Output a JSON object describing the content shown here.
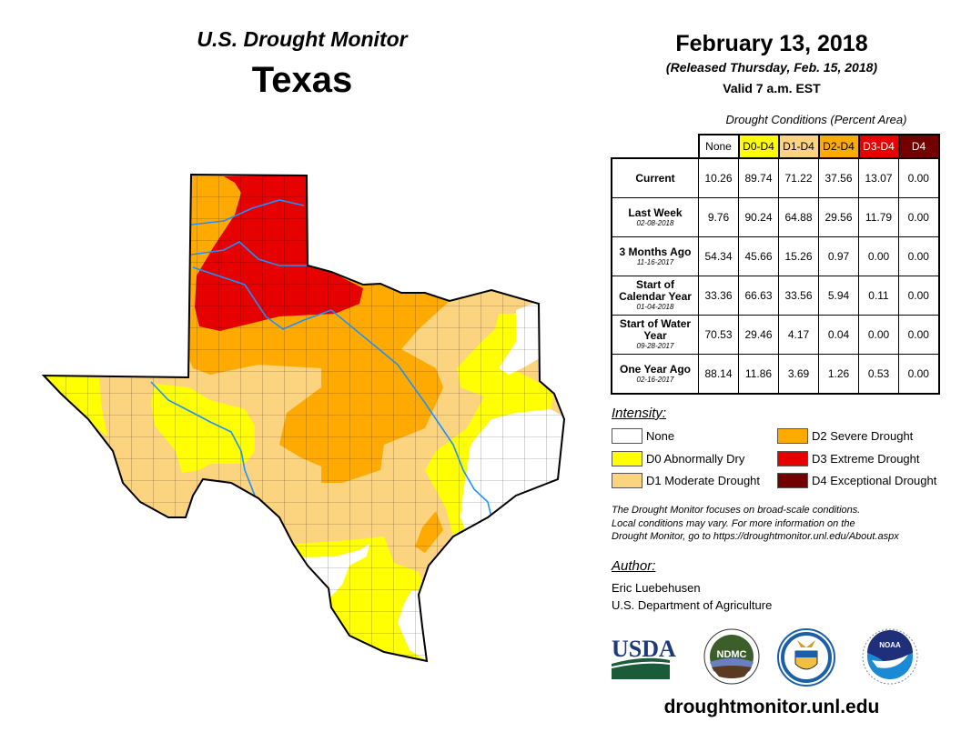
{
  "header": {
    "title": "U.S. Drought Monitor",
    "state": "Texas",
    "date": "February 13, 2018",
    "released": "(Released Thursday, Feb. 15, 2018)",
    "valid": "Valid 7 a.m. EST"
  },
  "table": {
    "caption": "Drought Conditions (Percent Area)",
    "columns": [
      "None",
      "D0-D4",
      "D1-D4",
      "D2-D4",
      "D3-D4",
      "D4"
    ],
    "rows": [
      {
        "label": "Current",
        "date": "",
        "values": [
          "10.26",
          "89.74",
          "71.22",
          "37.56",
          "13.07",
          "0.00"
        ]
      },
      {
        "label": "Last Week",
        "date": "02-08-2018",
        "values": [
          "9.76",
          "90.24",
          "64.88",
          "29.56",
          "11.79",
          "0.00"
        ]
      },
      {
        "label": "3 Months Ago",
        "date": "11-16-2017",
        "values": [
          "54.34",
          "45.66",
          "15.26",
          "0.97",
          "0.00",
          "0.00"
        ]
      },
      {
        "label": "Start of Calendar Year",
        "date": "01-04-2018",
        "values": [
          "33.36",
          "66.63",
          "33.56",
          "5.94",
          "0.11",
          "0.00"
        ]
      },
      {
        "label": "Start of Water Year",
        "date": "09-28-2017",
        "values": [
          "70.53",
          "29.46",
          "4.17",
          "0.04",
          "0.00",
          "0.00"
        ]
      },
      {
        "label": "One Year Ago",
        "date": "02-16-2017",
        "values": [
          "88.14",
          "11.86",
          "3.69",
          "1.26",
          "0.53",
          "0.00"
        ]
      }
    ]
  },
  "colors": {
    "none": "#ffffff",
    "d0": "#ffff00",
    "d1": "#fcd37f",
    "d2": "#ffaa00",
    "d3": "#e60000",
    "d4": "#730000",
    "river": "#1e90ff"
  },
  "legend": {
    "title": "Intensity:",
    "items": [
      "None",
      "D0 Abnormally Dry",
      "D1 Moderate Drought",
      "D2 Severe Drought",
      "D3 Extreme Drought",
      "D4 Exceptional Drought"
    ]
  },
  "note": [
    "The Drought Monitor focuses on broad-scale conditions.",
    "Local conditions may vary. For more information on the",
    "Drought Monitor, go to https://droughtmonitor.unl.edu/About.aspx"
  ],
  "author": {
    "title": "Author:",
    "name": "Eric Luebehusen",
    "org": "U.S. Department of Agriculture"
  },
  "logos": {
    "usda": "USDA",
    "ndmc": "NDMC",
    "noaa": "NOAA"
  },
  "footer_url": "droughtmonitor.unl.edu"
}
